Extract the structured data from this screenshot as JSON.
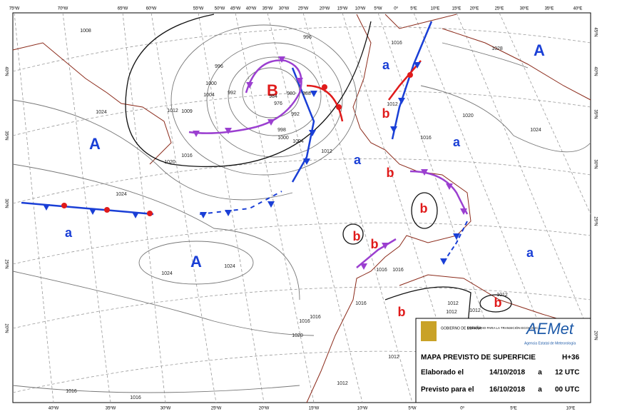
{
  "top_longitudes": [
    "75ºW",
    "70ºW",
    "65ºW",
    "60ºW",
    "55ºW",
    "50ºW",
    "45ºW",
    "40ºW",
    "35ºW",
    "30ºW",
    "25ºW",
    "20ºW",
    "15ºW",
    "10ºW",
    "5ºW",
    "0º",
    "5ºE",
    "10ºE",
    "15ºE",
    "20ºE",
    "25ºE",
    "30ºE",
    "35ºE",
    "40ºE"
  ],
  "bottom_longitudes": [
    "40ºW",
    "35ºW",
    "30ºW",
    "25ºW",
    "20ºW",
    "15ºW",
    "10ºW",
    "5ºW",
    "0º",
    "5ºE",
    "10ºE"
  ],
  "left_latitudes": [
    "40ºN",
    "35ºN",
    "30ºN",
    "25ºN",
    "20ºN"
  ],
  "right_latitudes": [
    "45ºN",
    "40ºN",
    "35ºN",
    "30ºN",
    "25ºN",
    "20ºN"
  ],
  "pressure_centers": [
    "A",
    "A",
    "A",
    "B",
    "a",
    "a",
    "a",
    "a",
    "a",
    "b",
    "b",
    "b",
    "b",
    "b",
    "b",
    "b"
  ],
  "isobar_labels": [
    "1008",
    "996",
    "992",
    "1000",
    "1004",
    "1012",
    "1009",
    "1024",
    "1020",
    "1016",
    "1024",
    "1024",
    "1024",
    "988",
    "980",
    "976",
    "992",
    "998",
    "1000",
    "1004",
    "1012",
    "984",
    "996",
    "1016",
    "1012",
    "1016",
    "1020",
    "1024",
    "1028",
    "1016",
    "1016",
    "1016",
    "1012",
    "1012",
    "1012",
    "1012",
    "1016",
    "1016",
    "1020",
    "1012",
    "1012",
    "1016",
    "1016"
  ],
  "info": {
    "title": "MAPA PREVISTO DE SUPERFICIE",
    "range": "H+36",
    "rows": [
      {
        "label": "Elaborado el",
        "date": "14/10/2018",
        "a": "a",
        "time": "12 UTC"
      },
      {
        "label": "Previsto para el",
        "date": "16/10/2018",
        "a": "a",
        "time": "00 UTC"
      }
    ]
  },
  "logos": {
    "gov": "GOBIERNO DE ESPAÑA",
    "ministry": "MINISTERIO PARA LA TRANSICIÓN ECOLÓGICA",
    "brand": "AEMet",
    "brand_sub": "Agencia Estatal de Meteorología"
  }
}
